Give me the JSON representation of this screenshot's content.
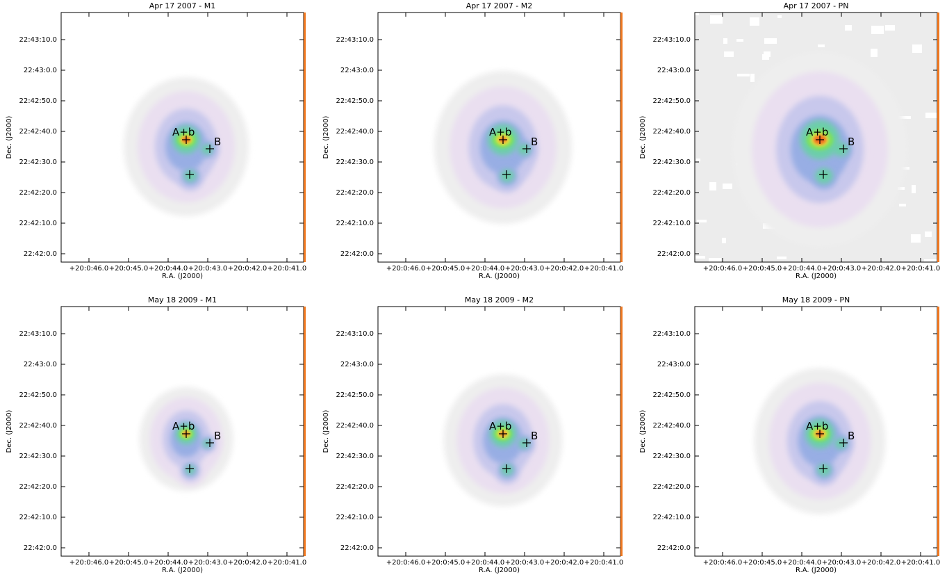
{
  "panels": [
    {
      "title": "Apr 17 2007 - M1"
    },
    {
      "title": "Apr 17 2007 - M2"
    },
    {
      "title": "Apr 17 2007 - PN"
    },
    {
      "title": "May 18 2009 - M1"
    },
    {
      "title": "May 18 2009 - M2"
    },
    {
      "title": "May 18 2009 - PN"
    }
  ],
  "axes": {
    "xlabel": "R.A. (J2000)",
    "ylabel": "Dec. (J2000)",
    "xticks": [
      "+20:0:46.0",
      "+20:0:45.0",
      "+20:0:44.0",
      "+20:0:43.0",
      "+20:0:42.0",
      "+20:0:41.0"
    ],
    "yticks": [
      "22:43:10.0",
      "22:43:0.0",
      "22:42:50.0",
      "22:42:40.0",
      "22:42:30.0",
      "22:42:20.0",
      "22:42:10.0",
      "22:42:0.0"
    ]
  },
  "sources": {
    "ab": "A+b",
    "b": "B"
  }
}
